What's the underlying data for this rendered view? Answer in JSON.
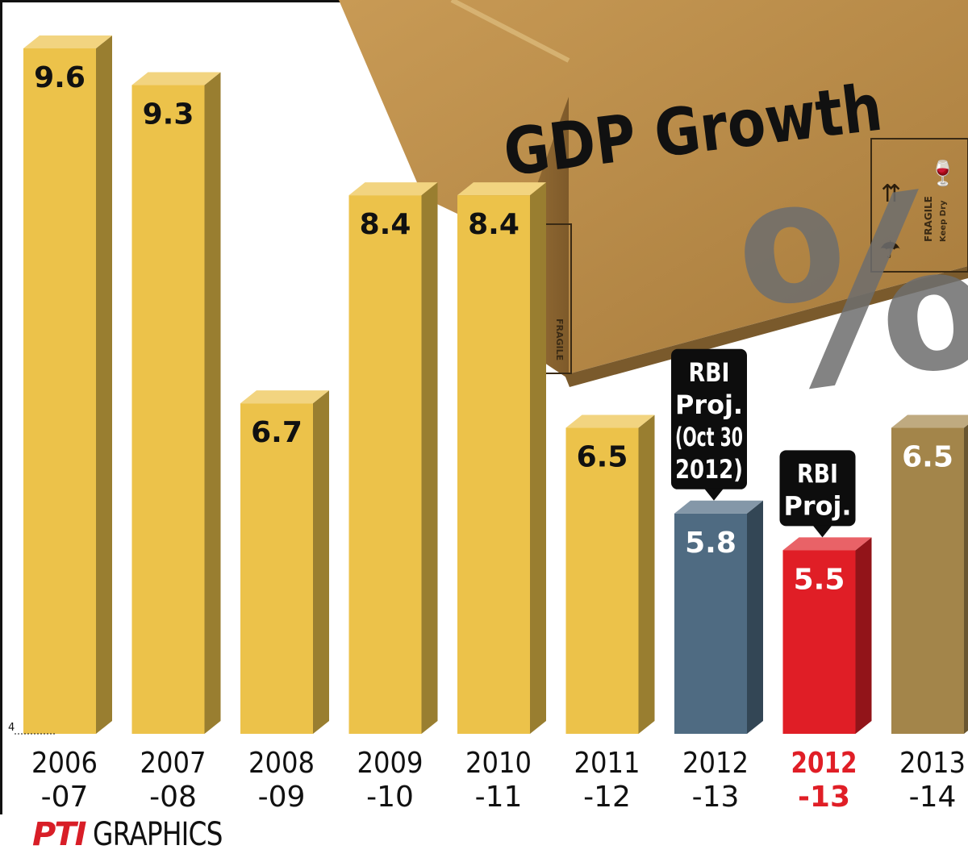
{
  "chart_data": {
    "type": "bar",
    "title": "GDP Growth",
    "unit_symbol": "%",
    "categories": [
      {
        "line1": "2006",
        "line2": "-07"
      },
      {
        "line1": "2007",
        "line2": "-08"
      },
      {
        "line1": "2008",
        "line2": "-09"
      },
      {
        "line1": "2009",
        "line2": "-10"
      },
      {
        "line1": "2010",
        "line2": "-11"
      },
      {
        "line1": "2011",
        "line2": "-12"
      },
      {
        "line1": "2012",
        "line2": "-13"
      },
      {
        "line1": "2012",
        "line2": "-13"
      },
      {
        "line1": "2013",
        "line2": "-14"
      }
    ],
    "values": [
      9.6,
      9.3,
      6.7,
      8.4,
      8.4,
      6.5,
      5.8,
      5.5,
      6.5
    ],
    "value_labels": [
      "9.6",
      "9.3",
      "6.7",
      "8.4",
      "8.4",
      "6.5",
      "5.8",
      "5.5",
      "6.5"
    ],
    "bar_colors": [
      "#ecc24a",
      "#ecc24a",
      "#ecc24a",
      "#ecc24a",
      "#ecc24a",
      "#ecc24a",
      "#4f6b82",
      "#e01e26",
      "#a3854a"
    ],
    "label_colors": [
      "#111111",
      "#111111",
      "#111111",
      "#111111",
      "#111111",
      "#111111",
      "#ffffff",
      "#ffffff",
      "#ffffff"
    ],
    "category_colors": [
      "#111111",
      "#111111",
      "#111111",
      "#111111",
      "#111111",
      "#111111",
      "#111111",
      "#e01e26",
      "#111111"
    ],
    "ylim": [
      4,
      10
    ],
    "baseline_tick": "4",
    "callouts": [
      {
        "bar_index": 6,
        "lines": [
          "RBI",
          "Proj.",
          "(Oct 30",
          "2012)"
        ]
      },
      {
        "bar_index": 7,
        "lines": [
          "RBI",
          "Proj."
        ]
      }
    ],
    "box_labels": [
      "FRAGILE",
      "Keep Dry"
    ]
  },
  "footer": {
    "logo_text": "PTI",
    "label": "GRAPHICS"
  }
}
